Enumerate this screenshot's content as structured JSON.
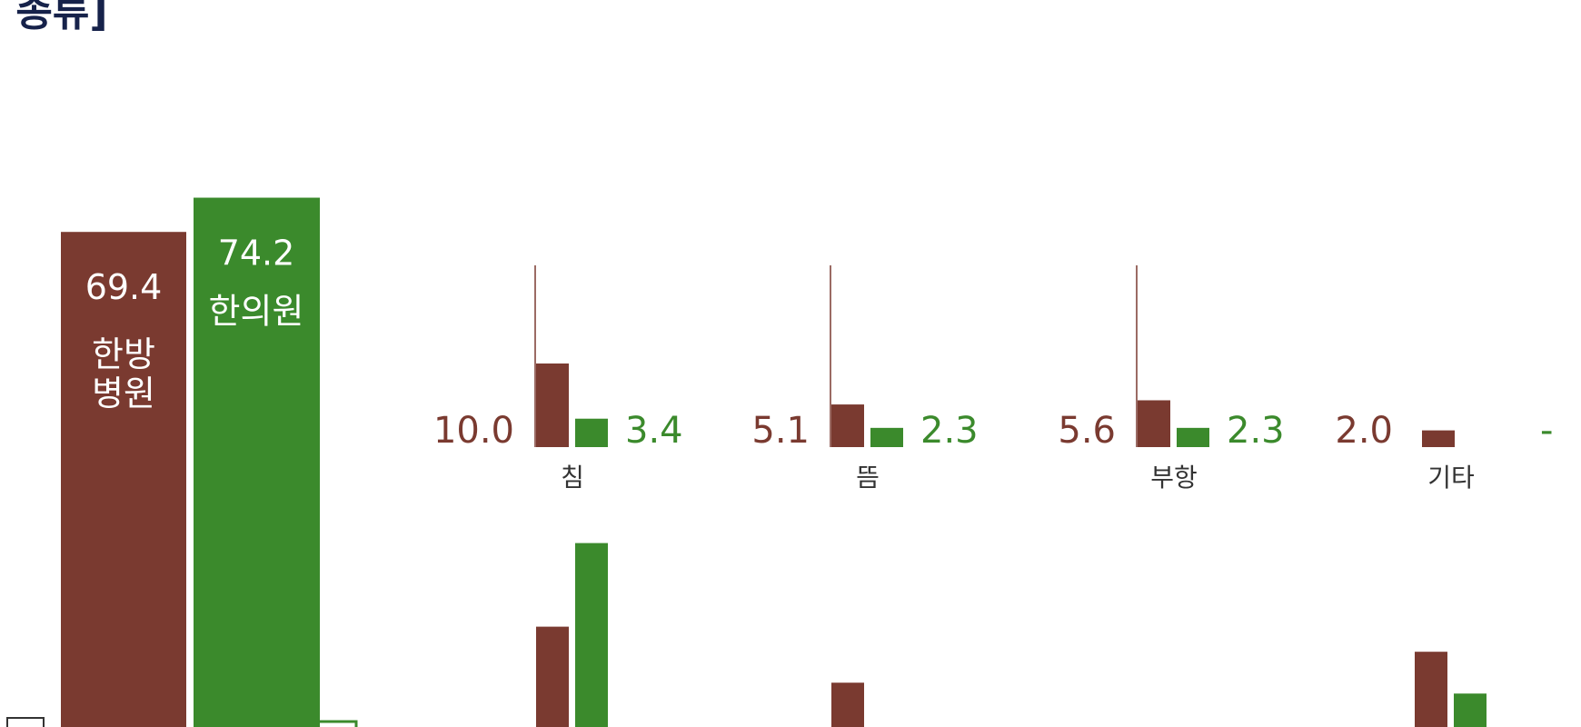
{
  "title_fragment": "] 종류]",
  "colors": {
    "hospital": "#7a3a30",
    "clinic": "#3b8a2c",
    "title": "#16224a"
  },
  "chart_data": {
    "type": "bar",
    "series": [
      {
        "name": "한방병원",
        "color": "#7a3a30"
      },
      {
        "name": "한의원",
        "color": "#3b8a2c"
      }
    ],
    "main": {
      "hospital": {
        "value": 69.4,
        "label": "69.4",
        "name_line1": "한방",
        "name_line2": "병원"
      },
      "clinic": {
        "value": 74.2,
        "label": "74.2",
        "name": "한의원"
      }
    },
    "row1": [
      {
        "category": "침",
        "hospital": 10.0,
        "clinic": 3.4,
        "hospital_label": "10.0",
        "clinic_label": "3.4"
      },
      {
        "category": "뜸",
        "hospital": 5.1,
        "clinic": 2.3,
        "hospital_label": "5.1",
        "clinic_label": "2.3"
      },
      {
        "category": "부항",
        "hospital": 5.6,
        "clinic": 2.3,
        "hospital_label": "5.6",
        "clinic_label": "2.3"
      },
      {
        "category": "기타",
        "hospital": 2.0,
        "clinic": null,
        "hospital_label": "2.0",
        "clinic_label": "-"
      }
    ],
    "row2_visible": [
      {
        "hospital": 12.0,
        "clinic": 22.0
      },
      {
        "hospital": 5.3,
        "clinic": 0
      },
      {
        "hospital": 0,
        "clinic": 0
      },
      {
        "hospital": 9.0,
        "clinic": 4.0
      }
    ]
  }
}
